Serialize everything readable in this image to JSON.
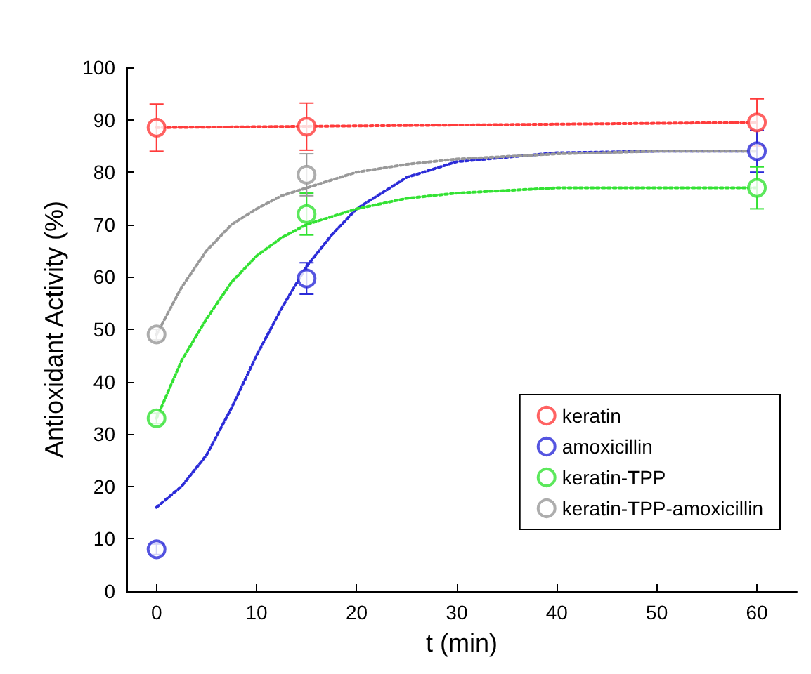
{
  "chart_data": {
    "type": "scatter",
    "xlabel": "t (min)",
    "ylabel": "Antioxidant Activity (%)",
    "x": [
      0,
      15,
      60
    ],
    "xlim": [
      -3,
      64
    ],
    "ylim": [
      0,
      100
    ],
    "xticks": [
      0,
      10,
      20,
      30,
      40,
      50,
      60
    ],
    "yticks": [
      0,
      10,
      20,
      30,
      40,
      50,
      60,
      70,
      80,
      90,
      100
    ],
    "grid": false,
    "legend": "bottom right",
    "marker": "circle",
    "series": [
      {
        "name": "keratin",
        "color": "#ff3b3b",
        "values": [
          88.5,
          88.7,
          89.5
        ],
        "errors": [
          4.5,
          4.5,
          4.5
        ]
      },
      {
        "name": "amoxicillin",
        "color": "#2b2bd8",
        "values": [
          8,
          59.7,
          84
        ],
        "errors": [
          1,
          3,
          4
        ]
      },
      {
        "name": "keratin-TPP",
        "color": "#33e233",
        "values": [
          33,
          72,
          77
        ],
        "errors": [
          1,
          4,
          4
        ]
      },
      {
        "name": "keratin-TPP-amoxicillin",
        "color": "#999999",
        "values": [
          49,
          79.5,
          null
        ],
        "errors": [
          1,
          4,
          null
        ]
      },
      {
        "type": "line",
        "marker": "none",
        "line_style": "dotted",
        "color": "#ff3b3b",
        "x": [
          0,
          60
        ],
        "values": [
          88.5,
          89.5
        ]
      },
      {
        "type": "line",
        "marker": "none",
        "line_style": "dotted",
        "color": "#2b2bd8",
        "x": [
          0,
          2.5,
          5,
          7.5,
          10,
          12.5,
          15,
          17.5,
          20,
          25,
          30,
          40,
          50,
          60
        ],
        "values": [
          16,
          20,
          26,
          35,
          45,
          54,
          62,
          68,
          73,
          79,
          82,
          83.7,
          84,
          84
        ]
      },
      {
        "type": "line",
        "marker": "none",
        "line_style": "dotted",
        "color": "#33e233",
        "x": [
          0,
          2.5,
          5,
          7.5,
          10,
          12.5,
          15,
          20,
          25,
          30,
          40,
          50,
          60
        ],
        "values": [
          33,
          44,
          52,
          59,
          64,
          67.5,
          70,
          73,
          75,
          76,
          77,
          77,
          77
        ]
      },
      {
        "type": "line",
        "marker": "none",
        "line_style": "dotted",
        "color": "#999999",
        "x": [
          0,
          2.5,
          5,
          7.5,
          10,
          12.5,
          15,
          20,
          25,
          30,
          40,
          50,
          60
        ],
        "values": [
          49,
          58,
          65,
          70,
          73,
          75.5,
          77,
          80,
          81.5,
          82.5,
          83.5,
          84,
          84
        ]
      }
    ]
  }
}
